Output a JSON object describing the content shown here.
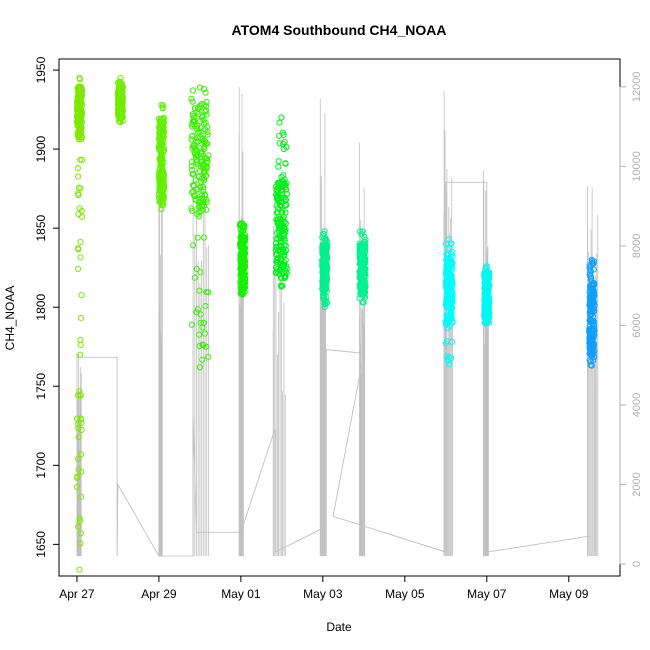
{
  "chart_data": {
    "type": "scatter",
    "title": "ATOM4 Southbound CH4_NOAA",
    "xlabel": "Date",
    "ylabel": "CH4_NOAA",
    "x_ticks": [
      "Apr 27",
      "Apr 29",
      "May 01",
      "May 03",
      "May 05",
      "May 07",
      "May 09"
    ],
    "x_range": [
      "2018-04-26T13:30",
      "2018-05-10T06:00"
    ],
    "y_ticks": [
      1650,
      1700,
      1750,
      1800,
      1850,
      1900,
      1950
    ],
    "ylim": [
      1630,
      1957
    ],
    "y2_ticks": [
      0,
      2000,
      4000,
      6000,
      8000,
      10000,
      12000
    ],
    "y2lim": [
      -300,
      12700
    ],
    "grid": false,
    "series_ch4": [
      {
        "x": "2018-04-27T00:00",
        "x_end": "2018-04-27T03:00",
        "y_min": 1634,
        "y_max": 1945,
        "dense_min": 1906,
        "dense_max": 1940,
        "color": "#7fe800"
      },
      {
        "x": "2018-04-28T00:00",
        "x_end": "2018-04-28T03:00",
        "y_min": 1917,
        "y_max": 1945,
        "dense_min": 1920,
        "dense_max": 1940,
        "color": "#74ec00"
      },
      {
        "x": "2018-04-29T00:00",
        "x_end": "2018-04-29T03:00",
        "y_min": 1862,
        "y_max": 1928,
        "dense_min": 1868,
        "dense_max": 1920,
        "color": "#60f000"
      },
      {
        "x": "2018-04-29T19:00",
        "x_end": "2018-04-30T05:00",
        "y_min": 1762,
        "y_max": 1939,
        "dense_min": 1860,
        "dense_max": 1930,
        "color": "#38f200"
      },
      {
        "x": "2018-04-30T23:30",
        "x_end": "2018-05-01T02:30",
        "y_min": 1808,
        "y_max": 1853,
        "dense_min": 1812,
        "dense_max": 1845,
        "color": "#16f000"
      },
      {
        "x": "2018-05-01T20:30",
        "x_end": "2018-05-02T03:00",
        "y_min": 1813,
        "y_max": 1920,
        "dense_min": 1818,
        "dense_max": 1880,
        "color": "#00ef1a"
      },
      {
        "x": "2018-05-02T23:30",
        "x_end": "2018-05-03T02:30",
        "y_min": 1800,
        "y_max": 1848,
        "dense_min": 1810,
        "dense_max": 1840,
        "color": "#00f08c"
      },
      {
        "x": "2018-05-03T21:30",
        "x_end": "2018-05-04T01:00",
        "y_min": 1803,
        "y_max": 1848,
        "dense_min": 1808,
        "dense_max": 1840,
        "color": "#00f28f"
      },
      {
        "x": "2018-05-06T00:00",
        "x_end": "2018-05-06T04:00",
        "y_min": 1764,
        "y_max": 1843,
        "dense_min": 1790,
        "dense_max": 1830,
        "color": "#00fcfc"
      },
      {
        "x": "2018-05-06T22:30",
        "x_end": "2018-05-07T01:30",
        "y_min": 1790,
        "y_max": 1826,
        "dense_min": 1792,
        "dense_max": 1822,
        "color": "#00f8f4"
      },
      {
        "x": "2018-05-09T12:00",
        "x_end": "2018-05-09T15:00",
        "y_min": 1763,
        "y_max": 1830,
        "dense_min": 1770,
        "dense_max": 1815,
        "color": "#0f9eff"
      }
    ],
    "series_secondary": {
      "color": "#c0c0c0",
      "spikes": [
        {
          "x": "2018-04-27T00:00",
          "x_end": "2018-04-27T02:30",
          "top": 5300
        },
        {
          "x": "2018-04-29T00:00",
          "x_end": "2018-04-29T02:00",
          "top": 10100
        },
        {
          "x": "2018-04-29T20:00",
          "x_end": "2018-04-30T05:00",
          "top": 11700
        },
        {
          "x": "2018-04-30T23:00",
          "x_end": "2018-05-01T01:30",
          "top": 12000
        },
        {
          "x": "2018-05-01T19:00",
          "x_end": "2018-05-02T02:00",
          "top": 8500
        },
        {
          "x": "2018-05-02T22:30",
          "x_end": "2018-05-03T02:00",
          "top": 11700
        },
        {
          "x": "2018-05-03T21:30",
          "x_end": "2018-05-04T00:30",
          "top": 10600
        },
        {
          "x": "2018-05-05T23:00",
          "x_end": "2018-05-06T04:00",
          "top": 11900
        },
        {
          "x": "2018-05-06T22:00",
          "x_end": "2018-05-07T01:00",
          "top": 9900
        },
        {
          "x": "2018-05-09T11:00",
          "x_end": "2018-05-09T17:00",
          "top": 9500
        }
      ],
      "path": [
        [
          "2018-04-27T00:00",
          5200
        ],
        [
          "2018-04-27T23:30",
          5200
        ],
        [
          "2018-04-27T23:30",
          200
        ],
        [
          "2018-04-28T00:00",
          2000
        ],
        [
          "2018-04-29T00:00",
          200
        ],
        [
          "2018-04-29T20:00",
          200
        ],
        [
          "2018-04-29T20:00",
          3700
        ],
        [
          "2018-04-29T22:00",
          800
        ],
        [
          "2018-05-01T00:00",
          800
        ],
        [
          "2018-05-01T20:00",
          3400
        ],
        [
          "2018-05-01T20:00",
          300
        ],
        [
          "2018-05-03T00:00",
          900
        ],
        [
          "2018-05-03T00:00",
          5400
        ],
        [
          "2018-05-04T00:00",
          5300
        ],
        [
          "2018-05-03T06:00",
          1200
        ],
        [
          "2018-05-06T00:00",
          300
        ],
        [
          "2018-05-06T00:00",
          9600
        ],
        [
          "2018-05-07T00:00",
          9600
        ],
        [
          "2018-05-07T00:00",
          300
        ],
        [
          "2018-05-09T12:00",
          700
        ]
      ]
    }
  }
}
